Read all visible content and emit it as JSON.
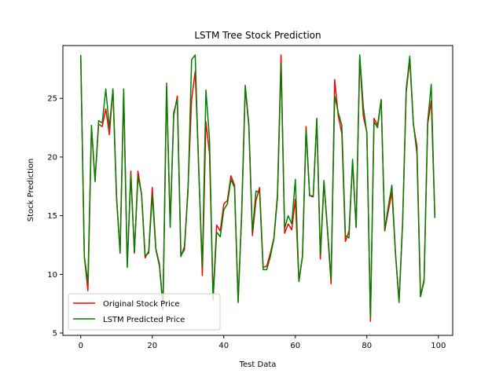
{
  "chart_data": {
    "type": "line",
    "title": "LSTM Tree Stock Prediction",
    "xlabel": "Test Data",
    "ylabel": "Stock Prediction",
    "xlim": [
      -5,
      104
    ],
    "ylim": [
      4.8,
      29.5
    ],
    "xticks": [
      0,
      20,
      40,
      60,
      80,
      100
    ],
    "yticks": [
      5,
      10,
      15,
      20,
      25
    ],
    "grid": false,
    "legend_position": "lower-left",
    "series": [
      {
        "name": "Original Stock Price",
        "color": "#ff0000",
        "x": [
          0,
          1,
          2,
          3,
          4,
          5,
          6,
          7,
          8,
          9,
          10,
          11,
          12,
          13,
          14,
          15,
          16,
          17,
          18,
          19,
          20,
          21,
          22,
          23,
          24,
          25,
          26,
          27,
          28,
          29,
          30,
          31,
          32,
          33,
          34,
          35,
          36,
          37,
          38,
          39,
          40,
          41,
          42,
          43,
          44,
          45,
          46,
          47,
          48,
          49,
          50,
          51,
          52,
          53,
          54,
          55,
          56,
          57,
          58,
          59,
          60,
          61,
          62,
          63,
          64,
          65,
          66,
          67,
          68,
          69,
          70,
          71,
          72,
          73,
          74,
          75,
          76,
          77,
          78,
          79,
          80,
          81,
          82,
          83,
          84,
          85,
          86,
          87,
          88,
          89,
          90,
          91,
          92,
          93,
          94,
          95,
          96,
          97,
          98,
          99
        ],
        "values": [
          28.5,
          11.5,
          8.6,
          22.5,
          18.0,
          22.8,
          22.6,
          24.1,
          21.9,
          25.8,
          16.5,
          11.9,
          25.5,
          10.7,
          18.8,
          11.8,
          18.8,
          16.8,
          11.4,
          12.0,
          17.4,
          12.2,
          10.9,
          7.0,
          26.0,
          14.3,
          23.5,
          25.2,
          11.6,
          12.1,
          17.5,
          24.9,
          27.3,
          19.0,
          9.9,
          23.0,
          20.3,
          8.0,
          14.2,
          13.7,
          16.0,
          16.3,
          18.4,
          17.6,
          7.6,
          15.1,
          25.9,
          22.6,
          13.3,
          16.3,
          17.4,
          10.6,
          10.7,
          11.8,
          13.1,
          16.8,
          28.7,
          13.5,
          14.3,
          13.8,
          16.4,
          9.4,
          11.5,
          22.6,
          16.7,
          16.6,
          23.2,
          11.3,
          17.8,
          13.7,
          9.2,
          26.6,
          23.5,
          22.0,
          12.8,
          13.7,
          19.5,
          14.0,
          28.4,
          23.5,
          22.1,
          6.0,
          23.3,
          22.7,
          24.9,
          13.7,
          15.4,
          17.0,
          11.8,
          7.6,
          14.5,
          25.5,
          28.3,
          22.8,
          20.9,
          8.1,
          9.6,
          22.8,
          24.8,
          15.0
        ]
      },
      {
        "name": "LSTM Predicted Price",
        "color": "#008000",
        "x": [
          0,
          1,
          2,
          3,
          4,
          5,
          6,
          7,
          8,
          9,
          10,
          11,
          12,
          13,
          14,
          15,
          16,
          17,
          18,
          19,
          20,
          21,
          22,
          23,
          24,
          25,
          26,
          27,
          28,
          29,
          30,
          31,
          32,
          33,
          34,
          35,
          36,
          37,
          38,
          39,
          40,
          41,
          42,
          43,
          44,
          45,
          46,
          47,
          48,
          49,
          50,
          51,
          52,
          53,
          54,
          55,
          56,
          57,
          58,
          59,
          60,
          61,
          62,
          63,
          64,
          65,
          66,
          67,
          68,
          69,
          70,
          71,
          72,
          73,
          74,
          75,
          76,
          77,
          78,
          79,
          80,
          81,
          82,
          83,
          84,
          85,
          86,
          87,
          88,
          89,
          90,
          91,
          92,
          93,
          94,
          95,
          96,
          97,
          98,
          99
        ],
        "values": [
          28.7,
          11.5,
          9.3,
          22.7,
          17.9,
          23.1,
          22.9,
          25.8,
          22.5,
          25.8,
          16.7,
          11.8,
          25.8,
          10.6,
          18.5,
          11.9,
          18.3,
          16.9,
          11.6,
          11.8,
          16.8,
          12.1,
          10.7,
          7.5,
          26.3,
          14.0,
          23.8,
          24.9,
          11.5,
          12.4,
          17.1,
          28.3,
          28.7,
          18.7,
          10.6,
          25.7,
          21.5,
          7.8,
          13.6,
          13.2,
          15.5,
          16.0,
          18.1,
          17.4,
          7.7,
          15.3,
          26.1,
          22.8,
          13.6,
          17.1,
          17.0,
          10.4,
          10.4,
          11.5,
          13.0,
          16.5,
          28.0,
          13.9,
          15.0,
          14.3,
          18.1,
          9.4,
          11.6,
          22.3,
          16.7,
          16.7,
          23.3,
          11.6,
          18.0,
          13.8,
          9.6,
          25.2,
          23.8,
          22.7,
          13.3,
          13.1,
          19.8,
          14.0,
          28.7,
          24.3,
          22.0,
          6.3,
          23.0,
          22.5,
          24.9,
          13.8,
          15.8,
          17.6,
          11.8,
          7.7,
          14.3,
          25.8,
          28.6,
          22.9,
          20.3,
          8.1,
          9.4,
          23.0,
          26.2,
          14.8
        ]
      }
    ]
  }
}
